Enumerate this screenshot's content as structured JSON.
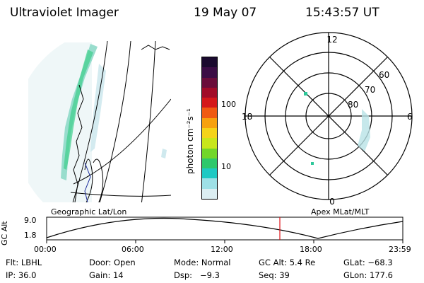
{
  "header": {
    "instrument": "Ultraviolet Imager",
    "date": "19 May 07",
    "time": "15:43:57 UT"
  },
  "colorbar": {
    "unit_label": "photon cm⁻²s⁻¹",
    "ticks": [
      "100",
      "10"
    ],
    "colors_top_to_bottom": [
      "#1a0a2e",
      "#3b0d45",
      "#6a0d3a",
      "#a10c28",
      "#d4181a",
      "#f05a12",
      "#f7a10f",
      "#f5d31a",
      "#c8e61c",
      "#72d62a",
      "#2ec86b",
      "#1fc9c3",
      "#9ee0e6",
      "#dceef2"
    ]
  },
  "polar_plot": {
    "mlt_labels": [
      "12",
      "18",
      "6",
      "0"
    ],
    "lat_labels": [
      "60",
      "70",
      "80"
    ]
  },
  "geo_map": {
    "label": "Geographic Lat/Lon"
  },
  "apex_label": "Apex MLat/MLT",
  "altitude_plot": {
    "axis_label": "GC Alt",
    "y_ticks": [
      "9.0",
      "1.8"
    ],
    "x_ticks": [
      "00:00",
      "06:00",
      "12:00",
      "18:00",
      "23:59"
    ]
  },
  "status": {
    "row1": {
      "filter": "Flt: LBHL",
      "door": "Door: Open",
      "mode": "Mode: Normal",
      "gcalt": "GC Alt: 5.4 Re",
      "glat": "GLat: −68.3"
    },
    "row2": {
      "ip": "IP: 36.0",
      "gain": "Gain: 14",
      "dsp": "Dsp:   −9.3",
      "seq": "Seq: 39",
      "glon": "GLon: 177.6"
    }
  },
  "accent_colors": {
    "current_time_marker": "#e0141a",
    "coast": "#1a2a9a"
  }
}
